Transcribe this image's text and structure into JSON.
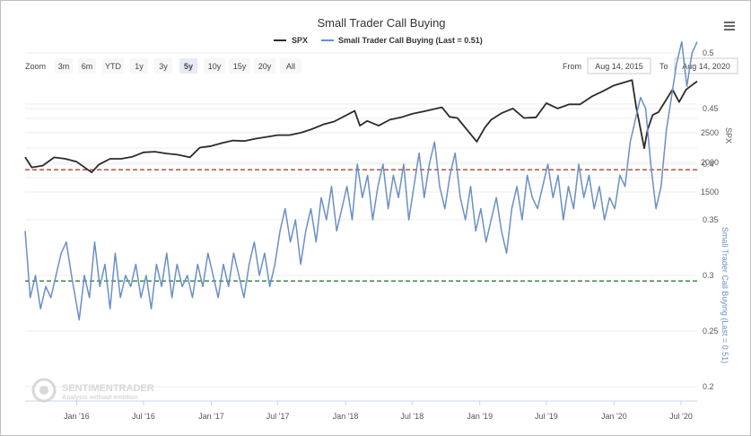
{
  "chart_data": {
    "type": "line",
    "title": "Small Trader Call Buying",
    "legend": [
      {
        "label": "SPX",
        "color": "#2b2b2b"
      },
      {
        "label": "Small Trader Call Buying (Last = 0.51)",
        "color": "#6b8fc7"
      }
    ],
    "x_ticks": [
      "Jan '16",
      "Jul '16",
      "Jan '17",
      "Jul '17",
      "Jan '18",
      "Jul '18",
      "Jan '19",
      "Jul '19",
      "Jan '20",
      "Jul '20"
    ],
    "x_range": [
      "2015-08-14",
      "2020-08-14"
    ],
    "spx_axis": {
      "label": "SPX",
      "ticks": [
        "1500",
        "2000",
        "2500"
      ],
      "range": [
        1500,
        3500
      ]
    },
    "ratio_axis": {
      "label": "Small Trader Call Buying (Last = 0.51)",
      "ticks": [
        "0.2",
        "0.25",
        "0.3",
        "0.35",
        "0.4",
        "0.45",
        "0.5"
      ],
      "range": [
        0.2,
        0.5
      ]
    },
    "reference_lines": [
      {
        "value": 0.395,
        "color": "#c0392b"
      },
      {
        "value": 0.295,
        "color": "#2e7d32"
      }
    ],
    "series": [
      {
        "name": "SPX",
        "color": "#2b2b2b",
        "x": [
          "2015-08-14",
          "2015-09-01",
          "2015-10-01",
          "2015-11-01",
          "2015-12-01",
          "2016-01-01",
          "2016-02-11",
          "2016-03-01",
          "2016-04-01",
          "2016-05-01",
          "2016-06-01",
          "2016-07-01",
          "2016-08-01",
          "2016-09-01",
          "2016-10-01",
          "2016-11-04",
          "2016-12-01",
          "2017-01-01",
          "2017-02-01",
          "2017-03-01",
          "2017-04-01",
          "2017-05-01",
          "2017-06-01",
          "2017-07-01",
          "2017-08-01",
          "2017-09-01",
          "2017-10-01",
          "2017-11-01",
          "2017-12-01",
          "2018-01-26",
          "2018-02-09",
          "2018-03-01",
          "2018-04-01",
          "2018-05-01",
          "2018-06-01",
          "2018-07-01",
          "2018-08-01",
          "2018-09-20",
          "2018-10-11",
          "2018-11-01",
          "2018-12-24",
          "2019-01-15",
          "2019-02-01",
          "2019-03-01",
          "2019-04-01",
          "2019-05-01",
          "2019-06-03",
          "2019-07-01",
          "2019-08-01",
          "2019-09-01",
          "2019-10-01",
          "2019-11-01",
          "2019-12-01",
          "2020-01-01",
          "2020-02-19",
          "2020-03-01",
          "2020-03-23",
          "2020-04-01",
          "2020-04-15",
          "2020-05-01",
          "2020-06-08",
          "2020-06-26",
          "2020-07-15",
          "2020-08-14"
        ],
        "values": [
          2090,
          1915,
          1945,
          2085,
          2060,
          2010,
          1830,
          1960,
          2060,
          2060,
          2095,
          2170,
          2180,
          2150,
          2130,
          2085,
          2250,
          2275,
          2330,
          2370,
          2360,
          2400,
          2430,
          2460,
          2460,
          2500,
          2560,
          2640,
          2690,
          2870,
          2620,
          2700,
          2620,
          2720,
          2760,
          2820,
          2860,
          2930,
          2770,
          2750,
          2350,
          2590,
          2720,
          2830,
          2910,
          2750,
          2760,
          3000,
          2910,
          2980,
          2980,
          3110,
          3200,
          3300,
          3390,
          2950,
          2240,
          2550,
          2800,
          2850,
          3230,
          3020,
          3230,
          3370
        ]
      },
      {
        "name": "Small Trader Call Buying (Last = 0.51)",
        "color": "#6b8fc7",
        "x": [
          "2015-08-14",
          "2015-08-28",
          "2015-09-11",
          "2015-09-25",
          "2015-10-09",
          "2015-10-23",
          "2015-11-06",
          "2015-11-20",
          "2015-12-04",
          "2015-12-18",
          "2016-01-08",
          "2016-01-22",
          "2016-02-05",
          "2016-02-19",
          "2016-03-04",
          "2016-03-18",
          "2016-04-01",
          "2016-04-15",
          "2016-04-29",
          "2016-05-13",
          "2016-05-27",
          "2016-06-10",
          "2016-06-24",
          "2016-07-08",
          "2016-07-22",
          "2016-08-05",
          "2016-08-19",
          "2016-09-02",
          "2016-09-16",
          "2016-09-30",
          "2016-10-14",
          "2016-10-28",
          "2016-11-11",
          "2016-11-25",
          "2016-12-09",
          "2016-12-23",
          "2017-01-06",
          "2017-01-20",
          "2017-02-03",
          "2017-02-17",
          "2017-03-03",
          "2017-03-17",
          "2017-03-31",
          "2017-04-14",
          "2017-04-28",
          "2017-05-12",
          "2017-05-26",
          "2017-06-09",
          "2017-06-23",
          "2017-07-07",
          "2017-07-21",
          "2017-08-04",
          "2017-08-18",
          "2017-09-01",
          "2017-09-15",
          "2017-09-29",
          "2017-10-13",
          "2017-10-27",
          "2017-11-10",
          "2017-11-24",
          "2017-12-08",
          "2017-12-22",
          "2018-01-05",
          "2018-01-19",
          "2018-02-02",
          "2018-02-16",
          "2018-03-02",
          "2018-03-16",
          "2018-03-30",
          "2018-04-13",
          "2018-04-27",
          "2018-05-11",
          "2018-05-25",
          "2018-06-08",
          "2018-06-22",
          "2018-07-06",
          "2018-07-20",
          "2018-08-03",
          "2018-08-17",
          "2018-08-31",
          "2018-09-14",
          "2018-09-28",
          "2018-10-12",
          "2018-10-26",
          "2018-11-09",
          "2018-11-23",
          "2018-12-07",
          "2018-12-21",
          "2019-01-04",
          "2019-01-18",
          "2019-02-01",
          "2019-02-15",
          "2019-03-01",
          "2019-03-15",
          "2019-03-29",
          "2019-04-12",
          "2019-04-26",
          "2019-05-10",
          "2019-05-24",
          "2019-06-07",
          "2019-06-21",
          "2019-07-05",
          "2019-07-19",
          "2019-08-02",
          "2019-08-16",
          "2019-08-30",
          "2019-09-13",
          "2019-09-27",
          "2019-10-11",
          "2019-10-25",
          "2019-11-08",
          "2019-11-22",
          "2019-12-06",
          "2019-12-20",
          "2020-01-03",
          "2020-01-17",
          "2020-01-31",
          "2020-02-14",
          "2020-02-28",
          "2020-03-13",
          "2020-03-27",
          "2020-04-10",
          "2020-04-24",
          "2020-05-08",
          "2020-05-22",
          "2020-06-05",
          "2020-06-19",
          "2020-07-03",
          "2020-07-17",
          "2020-07-31",
          "2020-08-14"
        ],
        "values": [
          0.34,
          0.28,
          0.3,
          0.27,
          0.29,
          0.28,
          0.3,
          0.32,
          0.33,
          0.3,
          0.26,
          0.3,
          0.28,
          0.33,
          0.29,
          0.31,
          0.27,
          0.32,
          0.28,
          0.3,
          0.29,
          0.31,
          0.28,
          0.3,
          0.27,
          0.31,
          0.29,
          0.32,
          0.28,
          0.31,
          0.29,
          0.3,
          0.28,
          0.31,
          0.29,
          0.32,
          0.3,
          0.28,
          0.31,
          0.29,
          0.32,
          0.3,
          0.28,
          0.31,
          0.33,
          0.3,
          0.32,
          0.29,
          0.31,
          0.34,
          0.36,
          0.33,
          0.35,
          0.31,
          0.34,
          0.36,
          0.33,
          0.37,
          0.35,
          0.38,
          0.34,
          0.36,
          0.38,
          0.35,
          0.4,
          0.37,
          0.39,
          0.35,
          0.38,
          0.4,
          0.36,
          0.39,
          0.37,
          0.4,
          0.35,
          0.38,
          0.41,
          0.37,
          0.4,
          0.42,
          0.38,
          0.36,
          0.39,
          0.41,
          0.37,
          0.35,
          0.38,
          0.34,
          0.36,
          0.33,
          0.35,
          0.37,
          0.34,
          0.32,
          0.36,
          0.38,
          0.35,
          0.39,
          0.37,
          0.36,
          0.38,
          0.4,
          0.37,
          0.39,
          0.35,
          0.38,
          0.36,
          0.4,
          0.37,
          0.39,
          0.36,
          0.38,
          0.35,
          0.37,
          0.36,
          0.39,
          0.38,
          0.42,
          0.44,
          0.46,
          0.45,
          0.4,
          0.36,
          0.38,
          0.43,
          0.46,
          0.49,
          0.51,
          0.47,
          0.5,
          0.51
        ]
      }
    ],
    "watermark": {
      "name": "SENTIMENTRADER",
      "tagline": "Analysis without emotion"
    }
  },
  "toolbar": {
    "zoom_label": "Zoom",
    "zoom_buttons": [
      "3m",
      "6m",
      "YTD",
      "1y",
      "3y",
      "5y",
      "10y",
      "15y",
      "20y",
      "All"
    ],
    "selected": "5y",
    "from_label": "From",
    "from_value": "Aug 14, 2015",
    "to_label": "To",
    "to_value": "Aug 14, 2020"
  },
  "menu_icon": "hamburger-menu-icon"
}
